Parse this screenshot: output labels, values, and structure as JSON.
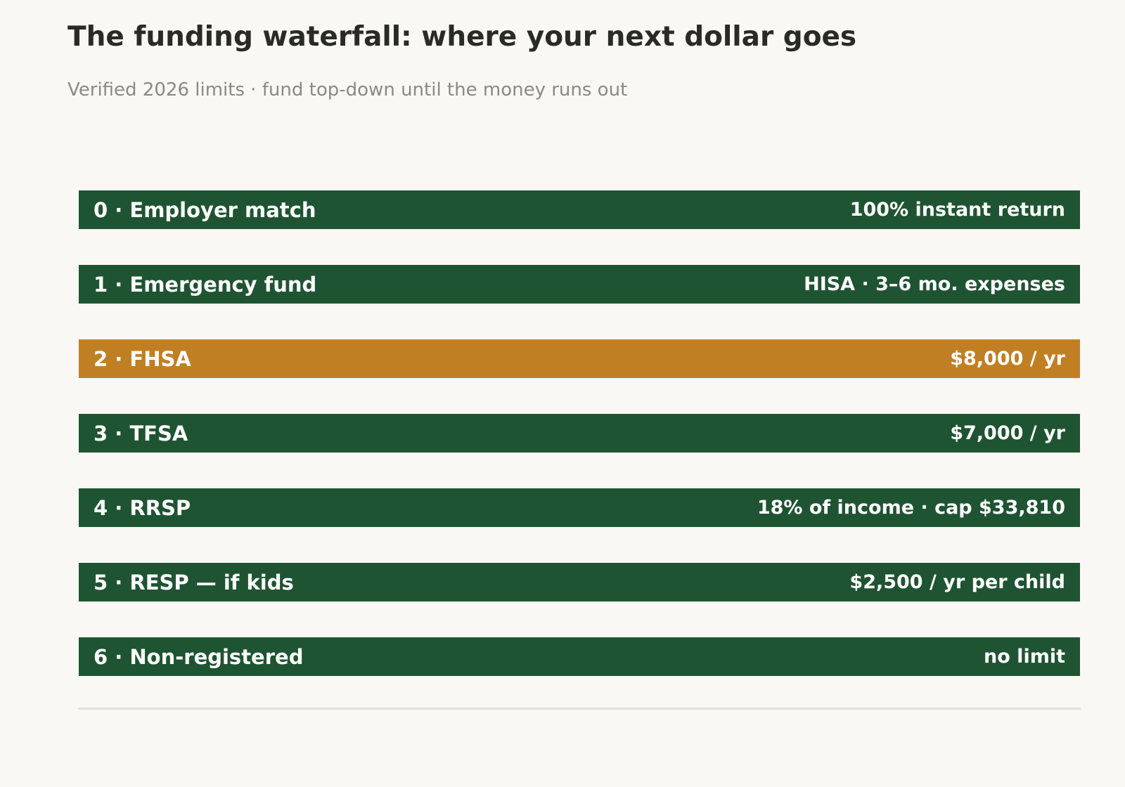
{
  "header": {
    "title": "The funding waterfall: where your next dollar goes",
    "subtitle": "Verified 2026 limits · fund top-down until the money runs out"
  },
  "colors": {
    "primary": "#1f5432",
    "highlight": "#c17f24",
    "background": "#f9f8f4",
    "text_dark": "#2a2a27",
    "text_muted": "#8a8a85",
    "baseline": "#e3e1d6"
  },
  "tiers": [
    {
      "label": "0 · Employer match",
      "limit": "100% instant return",
      "color": "#1f5432"
    },
    {
      "label": "1 · Emergency fund",
      "limit": "HISA · 3–6 mo. expenses",
      "color": "#1f5432"
    },
    {
      "label": "2 · FHSA",
      "limit": "$8,000 / yr",
      "color": "#c17f24"
    },
    {
      "label": "3 · TFSA",
      "limit": "$7,000 / yr",
      "color": "#1f5432"
    },
    {
      "label": "4 · RRSP",
      "limit": "18% of income · cap $33,810",
      "color": "#1f5432"
    },
    {
      "label": "5 · RESP — if kids",
      "limit": "$2,500 / yr per child",
      "color": "#1f5432"
    },
    {
      "label": "6 · Non-registered",
      "limit": "no limit",
      "color": "#1f5432"
    }
  ]
}
